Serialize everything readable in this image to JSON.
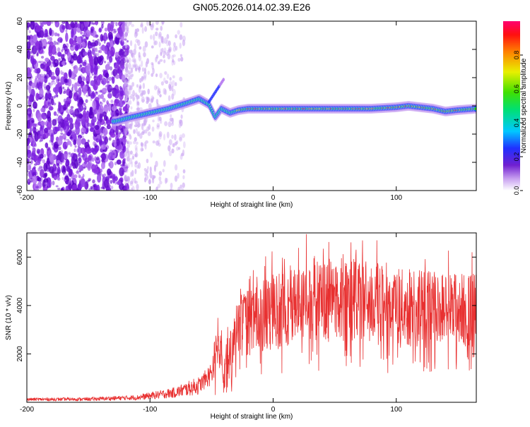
{
  "title": "GN05.2026.014.02.39.E26",
  "chart_data": [
    {
      "type": "heatmap",
      "xlabel": "Height of straight line (km)",
      "ylabel": "Frequency (Hz)",
      "xlim": [
        -200,
        165
      ],
      "ylim": [
        -60,
        60
      ],
      "xticks": [
        -200,
        -100,
        0,
        100
      ],
      "yticks": [
        -60,
        -40,
        -20,
        0,
        20,
        40,
        60
      ],
      "colorbar": {
        "label": "Normalized spectral amplitude",
        "range": [
          0.0,
          1.0
        ],
        "ticks": [
          "0.0",
          "0.2",
          "0.4",
          "0.6",
          "0.8"
        ]
      },
      "ridge": {
        "x": [
          -128,
          -115,
          -100,
          -85,
          -70,
          -60,
          -52,
          -47,
          -42,
          -35,
          -28,
          -20,
          0,
          20,
          40,
          60,
          80,
          100,
          110,
          120,
          130,
          140,
          150,
          165
        ],
        "y": [
          -11,
          -8,
          -5,
          -2,
          2,
          5,
          1,
          -8,
          -2,
          -5,
          -3,
          -2,
          -2,
          -2,
          -2,
          -2,
          -2,
          -1,
          0,
          -1,
          -2,
          -4,
          -3,
          -2
        ]
      }
    },
    {
      "type": "line",
      "xlabel": "Height of straight line (km)",
      "ylabel": "SNR (10 * v/v)",
      "xlim": [
        -200,
        165
      ],
      "ylim": [
        0,
        7000
      ],
      "xticks": [
        -200,
        -100,
        0,
        100
      ],
      "yticks": [
        2000,
        4000,
        6000
      ],
      "color": "#e83030",
      "envelope": {
        "x": [
          -200,
          -150,
          -110,
          -80,
          -60,
          -50,
          -45,
          -40,
          -35,
          -30,
          -25,
          -20,
          -10,
          0,
          10,
          20,
          30,
          40,
          50,
          60,
          70,
          80,
          100,
          130,
          165
        ],
        "y": [
          120,
          130,
          200,
          400,
          700,
          1200,
          2500,
          1500,
          2200,
          2800,
          3200,
          3300,
          3500,
          3700,
          3850,
          4050,
          4300,
          4200,
          4200,
          4400,
          4250,
          4100,
          3900,
          3850,
          3800
        ]
      }
    }
  ]
}
